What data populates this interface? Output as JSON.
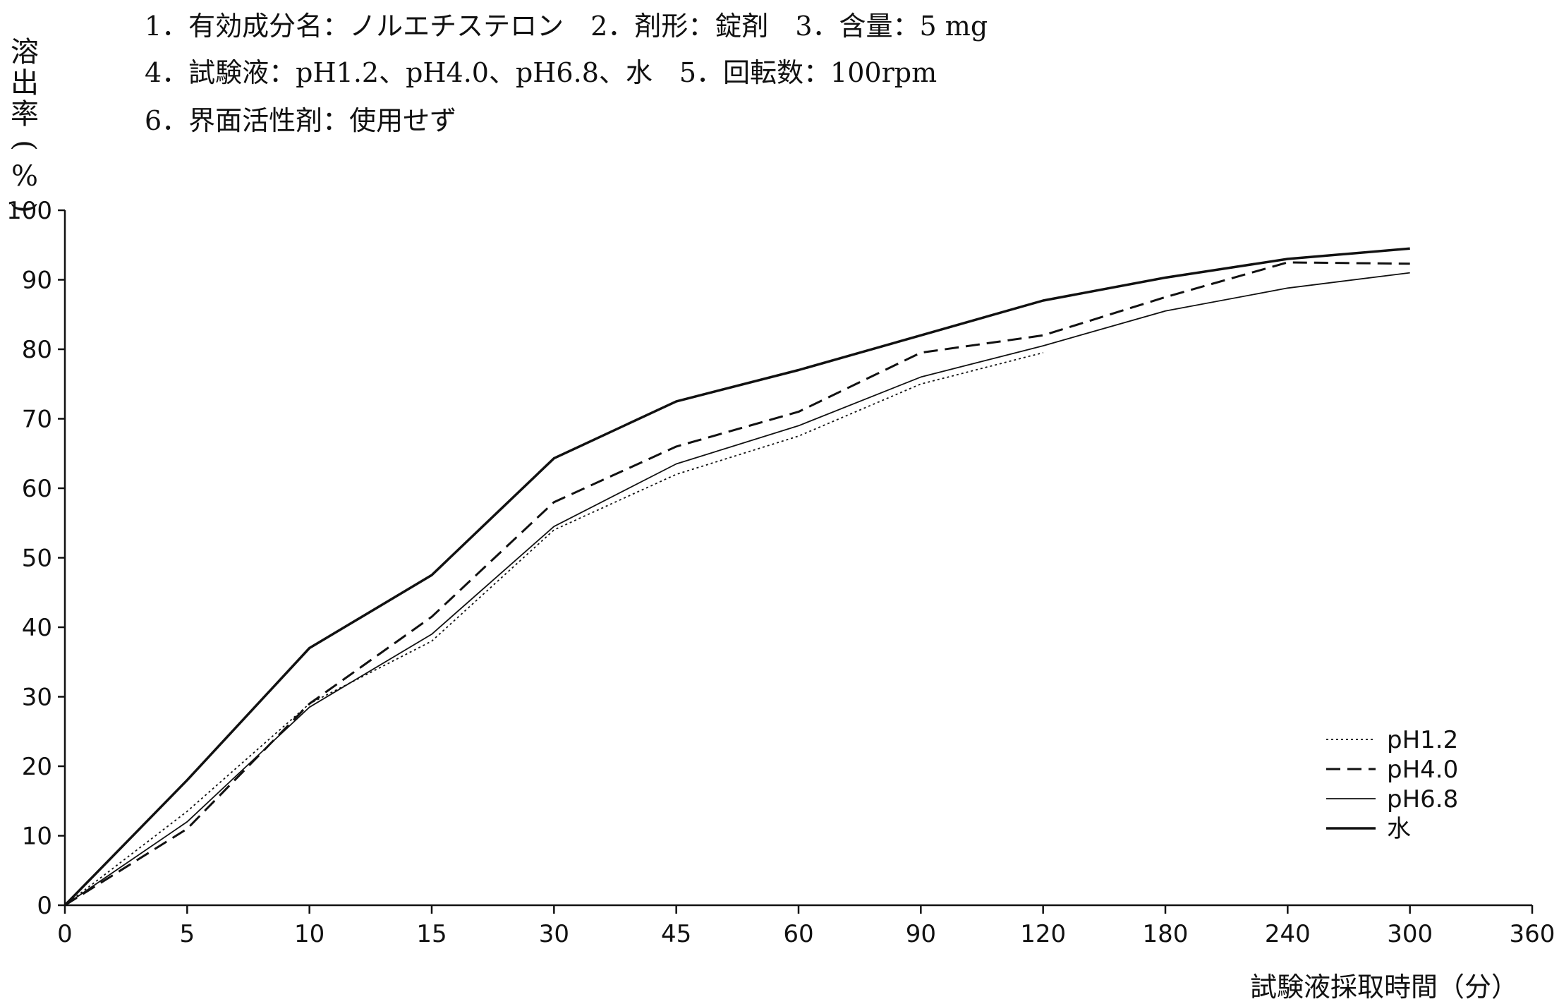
{
  "header": {
    "line1": "1．有効成分名：ノルエチステロン　2．剤形：錠剤　3．含量：5 mg",
    "line2": "4．試験液：pH1.2、pH4.0、pH6.8、水　5．回転数：100rpm",
    "line3": "6．界面活性剤：使用せず"
  },
  "chart_data": {
    "type": "line",
    "title": "",
    "xlabel": "試験液採取時間（分）",
    "ylabel": "溶出率（%）",
    "ylabel_chars": [
      "溶",
      "出",
      "率",
      "(",
      "%",
      ")"
    ],
    "categories": [
      "0",
      "5",
      "10",
      "15",
      "30",
      "45",
      "60",
      "90",
      "120",
      "180",
      "240",
      "300",
      "360"
    ],
    "yticks": [
      "0",
      "10",
      "20",
      "30",
      "40",
      "50",
      "60",
      "70",
      "80",
      "90",
      "100"
    ],
    "ylim": [
      0,
      100
    ],
    "grid": false,
    "legend_position": "bottom-right",
    "series": [
      {
        "name": "pH1.2",
        "style": "dotted",
        "values": [
          0,
          13.5,
          29,
          38,
          54,
          62,
          67.5,
          75,
          79.5,
          null,
          null,
          null,
          null
        ]
      },
      {
        "name": "pH4.0",
        "style": "dashed",
        "values": [
          0,
          11,
          29,
          41.5,
          58,
          66,
          71,
          79.5,
          82,
          87.5,
          92.5,
          92.3,
          null
        ]
      },
      {
        "name": "pH6.8",
        "style": "thin",
        "values": [
          0,
          12,
          28.5,
          39,
          54.5,
          63.5,
          69,
          76,
          80.5,
          85.5,
          88.8,
          91,
          null
        ]
      },
      {
        "name": "水",
        "style": "thick",
        "values": [
          0,
          18,
          37,
          47.5,
          64.3,
          72.5,
          77,
          82,
          87,
          90.3,
          93,
          94.5,
          null
        ]
      }
    ]
  }
}
